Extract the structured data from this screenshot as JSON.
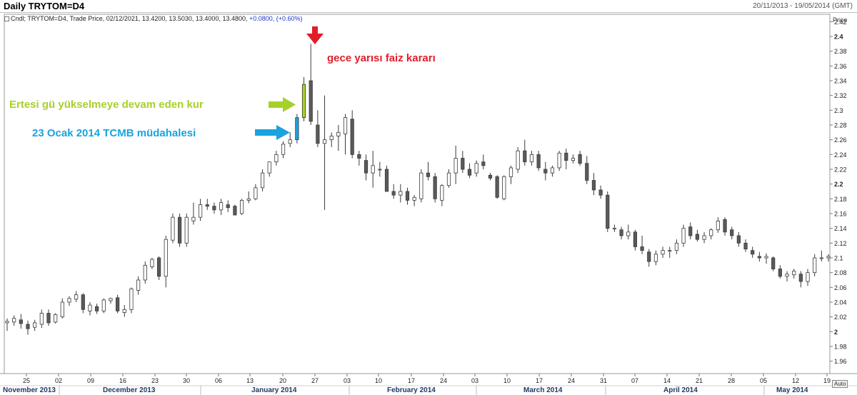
{
  "window": {
    "title": "Daily TRYTOM=D4",
    "date_range": "20/11/2013 - 19/05/2014 (GMT)"
  },
  "legend": {
    "prefix": "Cndl; TRYTOM=D4, Trade Price, 02/12/2021, 13.4200, 13.5030, 13.4000, 13.4800, ",
    "change": "+0.0800, (+0.60%)"
  },
  "axis": {
    "price_label": "Price",
    "auto_button": "Auto"
  },
  "annotations": {
    "red": "gece yarısı faiz kararı",
    "green": "Ertesi gü yükselmeye devam eden kur",
    "blue": "23 Ocak 2014 TCMB müdahalesi"
  },
  "colors": {
    "up_candle": "#ffffff",
    "down_candle": "#5a5a5a",
    "red_arrow": "#e01e2a",
    "green_arrow": "#a6d12a",
    "blue_arrow": "#1aa3de"
  },
  "chart_data": {
    "type": "candlestick",
    "ylim": [
      1.95,
      2.43
    ],
    "y_ticks": [
      1.96,
      1.98,
      2,
      2.02,
      2.04,
      2.06,
      2.08,
      2.1,
      2.12,
      2.14,
      2.16,
      2.18,
      2.2,
      2.22,
      2.24,
      2.26,
      2.28,
      2.3,
      2.32,
      2.34,
      2.36,
      2.38,
      2.4,
      2.42
    ],
    "y_bold_ticks": [
      2,
      2.2,
      2.4
    ],
    "x_day_ticks": [
      "25",
      "02",
      "09",
      "16",
      "23",
      "30",
      "06",
      "13",
      "20",
      "27",
      "03",
      "10",
      "17",
      "24",
      "03",
      "10",
      "17",
      "24",
      "31",
      "07",
      "14",
      "21",
      "28",
      "05",
      "12",
      "19"
    ],
    "x_month_labels": [
      "November 2013",
      "December 2013",
      "January 2014",
      "February 2014",
      "March 2014",
      "April 2014",
      "May 2014"
    ],
    "grid": false,
    "candles": [
      [
        2.012,
        2.018,
        2.001,
        2.014
      ],
      [
        2.013,
        2.022,
        2.008,
        2.018
      ],
      [
        2.016,
        2.024,
        2.004,
        2.011
      ],
      [
        2.01,
        2.015,
        1.996,
        2.004
      ],
      [
        2.006,
        2.016,
        2.001,
        2.012
      ],
      [
        2.01,
        2.03,
        2.005,
        2.025
      ],
      [
        2.025,
        2.03,
        2.008,
        2.012
      ],
      [
        2.013,
        2.025,
        2.011,
        2.023
      ],
      [
        2.02,
        2.045,
        2.018,
        2.04
      ],
      [
        2.04,
        2.048,
        2.035,
        2.045
      ],
      [
        2.044,
        2.055,
        2.04,
        2.05
      ],
      [
        2.05,
        2.052,
        2.025,
        2.03
      ],
      [
        2.028,
        2.04,
        2.022,
        2.036
      ],
      [
        2.034,
        2.038,
        2.024,
        2.028
      ],
      [
        2.028,
        2.045,
        2.025,
        2.043
      ],
      [
        2.042,
        2.046,
        2.038,
        2.045
      ],
      [
        2.046,
        2.05,
        2.025,
        2.028
      ],
      [
        2.026,
        2.036,
        2.02,
        2.03
      ],
      [
        2.03,
        2.06,
        2.025,
        2.058
      ],
      [
        2.056,
        2.075,
        2.05,
        2.07
      ],
      [
        2.07,
        2.095,
        2.065,
        2.09
      ],
      [
        2.088,
        2.1,
        2.085,
        2.098
      ],
      [
        2.1,
        2.102,
        2.07,
        2.075
      ],
      [
        2.075,
        2.13,
        2.06,
        2.125
      ],
      [
        2.124,
        2.16,
        2.12,
        2.155
      ],
      [
        2.155,
        2.16,
        2.115,
        2.12
      ],
      [
        2.12,
        2.16,
        2.115,
        2.155
      ],
      [
        2.15,
        2.175,
        2.145,
        2.155
      ],
      [
        2.155,
        2.18,
        2.15,
        2.172
      ],
      [
        2.172,
        2.18,
        2.165,
        2.17
      ],
      [
        2.17,
        2.175,
        2.16,
        2.165
      ],
      [
        2.165,
        2.18,
        2.158,
        2.175
      ],
      [
        2.172,
        2.178,
        2.162,
        2.168
      ],
      [
        2.17,
        2.172,
        2.162,
        2.158
      ],
      [
        2.16,
        2.18,
        2.158,
        2.178
      ],
      [
        2.178,
        2.19,
        2.174,
        2.18
      ],
      [
        2.18,
        2.2,
        2.178,
        2.195
      ],
      [
        2.195,
        2.22,
        2.19,
        2.215
      ],
      [
        2.215,
        2.23,
        2.21,
        2.23
      ],
      [
        2.23,
        2.245,
        2.225,
        2.24
      ],
      [
        2.24,
        2.258,
        2.235,
        2.254
      ],
      [
        2.255,
        2.27,
        2.25,
        2.26
      ],
      [
        2.26,
        2.295,
        2.255,
        2.29
      ],
      [
        2.29,
        2.345,
        2.285,
        2.335
      ],
      [
        2.34,
        2.39,
        2.28,
        2.285
      ],
      [
        2.28,
        2.3,
        2.25,
        2.255
      ],
      [
        2.255,
        2.32,
        2.165,
        2.26
      ],
      [
        2.26,
        2.27,
        2.25,
        2.265
      ],
      [
        2.265,
        2.28,
        2.245,
        2.27
      ],
      [
        2.268,
        2.295,
        2.24,
        2.29
      ],
      [
        2.288,
        2.3,
        2.235,
        2.24
      ],
      [
        2.24,
        2.245,
        2.225,
        2.235
      ],
      [
        2.232,
        2.24,
        2.205,
        2.215
      ],
      [
        2.215,
        2.245,
        2.195,
        2.225
      ],
      [
        2.22,
        2.23,
        2.21,
        2.22
      ],
      [
        2.22,
        2.225,
        2.19,
        2.19
      ],
      [
        2.19,
        2.2,
        2.18,
        2.185
      ],
      [
        2.185,
        2.2,
        2.175,
        2.19
      ],
      [
        2.19,
        2.195,
        2.172,
        2.178
      ],
      [
        2.178,
        2.185,
        2.17,
        2.182
      ],
      [
        2.18,
        2.22,
        2.175,
        2.215
      ],
      [
        2.215,
        2.23,
        2.205,
        2.21
      ],
      [
        2.21,
        2.215,
        2.175,
        2.18
      ],
      [
        2.178,
        2.2,
        2.17,
        2.198
      ],
      [
        2.198,
        2.22,
        2.195,
        2.215
      ],
      [
        2.215,
        2.252,
        2.2,
        2.235
      ],
      [
        2.235,
        2.245,
        2.215,
        2.22
      ],
      [
        2.22,
        2.228,
        2.208,
        2.212
      ],
      [
        2.215,
        2.232,
        2.21,
        2.228
      ],
      [
        2.23,
        2.24,
        2.22,
        2.225
      ],
      [
        2.212,
        2.215,
        2.205,
        2.208
      ],
      [
        2.21,
        2.212,
        2.18,
        2.182
      ],
      [
        2.18,
        2.212,
        2.178,
        2.21
      ],
      [
        2.21,
        2.225,
        2.2,
        2.222
      ],
      [
        2.22,
        2.25,
        2.215,
        2.245
      ],
      [
        2.245,
        2.26,
        2.225,
        2.23
      ],
      [
        2.23,
        2.245,
        2.225,
        2.24
      ],
      [
        2.24,
        2.245,
        2.218,
        2.222
      ],
      [
        2.22,
        2.23,
        2.205,
        2.215
      ],
      [
        2.215,
        2.225,
        2.21,
        2.222
      ],
      [
        2.222,
        2.245,
        2.218,
        2.242
      ],
      [
        2.242,
        2.248,
        2.22,
        2.232
      ],
      [
        2.232,
        2.24,
        2.228,
        2.235
      ],
      [
        2.24,
        2.245,
        2.225,
        2.228
      ],
      [
        2.228,
        2.238,
        2.2,
        2.205
      ],
      [
        2.205,
        2.215,
        2.185,
        2.192
      ],
      [
        2.192,
        2.198,
        2.18,
        2.185
      ],
      [
        2.185,
        2.19,
        2.135,
        2.14
      ],
      [
        2.14,
        2.145,
        2.135,
        2.14
      ],
      [
        2.138,
        2.142,
        2.125,
        2.13
      ],
      [
        2.13,
        2.145,
        2.125,
        2.135
      ],
      [
        2.135,
        2.138,
        2.11,
        2.115
      ],
      [
        2.115,
        2.13,
        2.105,
        2.11
      ],
      [
        2.108,
        2.112,
        2.088,
        2.095
      ],
      [
        2.095,
        2.11,
        2.09,
        2.105
      ],
      [
        2.105,
        2.115,
        2.1,
        2.11
      ],
      [
        2.11,
        2.115,
        2.1,
        2.11
      ],
      [
        2.11,
        2.125,
        2.105,
        2.12
      ],
      [
        2.12,
        2.145,
        2.115,
        2.14
      ],
      [
        2.142,
        2.148,
        2.125,
        2.13
      ],
      [
        2.132,
        2.138,
        2.122,
        2.125
      ],
      [
        2.125,
        2.135,
        2.12,
        2.13
      ],
      [
        2.13,
        2.14,
        2.125,
        2.138
      ],
      [
        2.138,
        2.155,
        2.134,
        2.15
      ],
      [
        2.152,
        2.155,
        2.13,
        2.135
      ],
      [
        2.138,
        2.142,
        2.125,
        2.13
      ],
      [
        2.13,
        2.135,
        2.115,
        2.12
      ],
      [
        2.12,
        2.125,
        2.108,
        2.112
      ],
      [
        2.11,
        2.115,
        2.1,
        2.105
      ],
      [
        2.102,
        2.108,
        2.095,
        2.1
      ],
      [
        2.1,
        2.106,
        2.092,
        2.102
      ],
      [
        2.1,
        2.102,
        2.082,
        2.085
      ],
      [
        2.085,
        2.09,
        2.072,
        2.075
      ],
      [
        2.075,
        2.082,
        2.068,
        2.078
      ],
      [
        2.077,
        2.085,
        2.072,
        2.082
      ],
      [
        2.078,
        2.082,
        2.06,
        2.068
      ],
      [
        2.068,
        2.085,
        2.062,
        2.08
      ],
      [
        2.08,
        2.105,
        2.075,
        2.1
      ],
      [
        2.1,
        2.11,
        2.095,
        2.1
      ],
      [
        2.1,
        2.105,
        2.095,
        2.102
      ]
    ]
  }
}
